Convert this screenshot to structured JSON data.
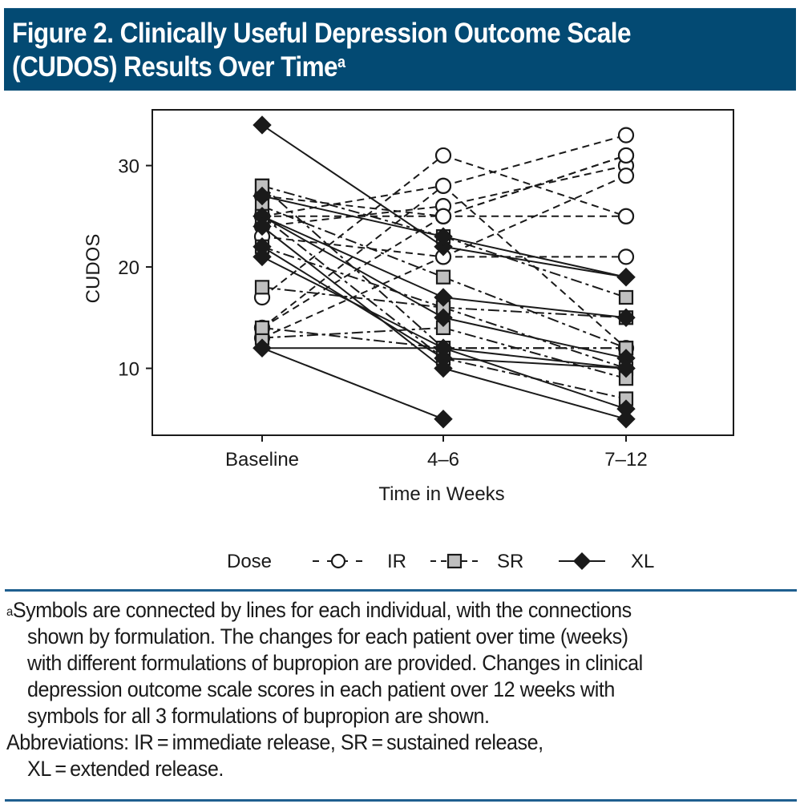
{
  "figure": {
    "title_line1": "Figure 2. Clinically Useful Depression Outcome Scale",
    "title_line2": "(CUDOS) Results Over Time",
    "title_sup": "a",
    "header_color": "#034a73",
    "rule_color": "#1f5f8f"
  },
  "legend": {
    "title": "Dose",
    "items": [
      {
        "label": "IR",
        "marker": "open-circle",
        "line": "dashed",
        "fill": "#ffffff"
      },
      {
        "label": "SR",
        "marker": "gray-square",
        "line": "dash-dot",
        "fill": "#bfbfbf"
      },
      {
        "label": "XL",
        "marker": "filled-diamond",
        "line": "solid",
        "fill": "#1a1a1a"
      }
    ]
  },
  "chart_data": {
    "type": "line",
    "title": "Clinically Useful Depression Outcome Scale (CUDOS) Results Over Time",
    "xlabel": "Time in Weeks",
    "ylabel": "CUDOS",
    "categories": [
      "Baseline",
      "4–6",
      "7–12"
    ],
    "yticks": [
      10,
      20,
      30
    ],
    "ylim": [
      3.4,
      35.5
    ],
    "grid": false,
    "legend_position": "bottom",
    "series": [
      {
        "name": "IR",
        "group": "IR",
        "values": [
          17,
          31,
          25
        ]
      },
      {
        "name": "IR",
        "group": "IR",
        "values": [
          14,
          28,
          33
        ]
      },
      {
        "name": "IR",
        "group": "IR",
        "values": [
          24,
          26,
          30
        ]
      },
      {
        "name": "IR",
        "group": "IR",
        "values": [
          25,
          25,
          31
        ]
      },
      {
        "name": "IR",
        "group": "IR",
        "values": [
          27,
          25,
          25
        ]
      },
      {
        "name": "IR",
        "group": "IR",
        "values": [
          23,
          21,
          21
        ]
      },
      {
        "name": "IR",
        "group": "IR",
        "values": [
          13,
          21,
          29
        ]
      },
      {
        "name": "IR",
        "group": "IR",
        "values": [
          25,
          28,
          12
        ]
      },
      {
        "name": "IR",
        "group": "IR",
        "values": [
          14,
          25,
          31
        ]
      },
      {
        "name": "SR",
        "group": "SR",
        "values": [
          28,
          23,
          17
        ]
      },
      {
        "name": "SR",
        "group": "SR",
        "values": [
          26,
          19,
          12
        ]
      },
      {
        "name": "SR",
        "group": "SR",
        "values": [
          22,
          16,
          15
        ]
      },
      {
        "name": "SR",
        "group": "SR",
        "values": [
          18,
          16,
          10
        ]
      },
      {
        "name": "SR",
        "group": "SR",
        "values": [
          13,
          14,
          9
        ]
      },
      {
        "name": "SR",
        "group": "SR",
        "values": [
          28,
          12,
          12
        ]
      },
      {
        "name": "SR",
        "group": "SR",
        "values": [
          25,
          11,
          7
        ]
      },
      {
        "name": "SR",
        "group": "SR",
        "values": [
          14,
          12,
          12
        ]
      },
      {
        "name": "XL",
        "group": "XL",
        "values": [
          34,
          22,
          19
        ]
      },
      {
        "name": "XL",
        "group": "XL",
        "values": [
          27,
          23,
          19
        ]
      },
      {
        "name": "XL",
        "group": "XL",
        "values": [
          25,
          17,
          15
        ]
      },
      {
        "name": "XL",
        "group": "XL",
        "values": [
          25,
          15,
          11
        ]
      },
      {
        "name": "XL",
        "group": "XL",
        "values": [
          21,
          12,
          10
        ]
      },
      {
        "name": "XL",
        "group": "XL",
        "values": [
          22,
          11,
          10
        ]
      },
      {
        "name": "XL",
        "group": "XL",
        "values": [
          12,
          12,
          6
        ]
      },
      {
        "name": "XL",
        "group": "XL",
        "values": [
          24,
          10,
          5
        ]
      },
      {
        "name": "XL",
        "group": "XL",
        "values": [
          12,
          5,
          null
        ]
      }
    ]
  },
  "footnote": {
    "sup": "a",
    "lines": [
      "Symbols are connected by lines for each individual, with the connections",
      "shown by formulation. The changes for each patient over time (weeks)",
      "with different formulations of bupropion are provided. Changes in clinical",
      "depression outcome scale scores in each patient over 12 weeks with",
      "symbols for all 3 formulations of bupropion are shown."
    ],
    "abbrev_line1": "Abbreviations: IR = immediate release, SR = sustained release,",
    "abbrev_line2": "XL = extended release."
  }
}
